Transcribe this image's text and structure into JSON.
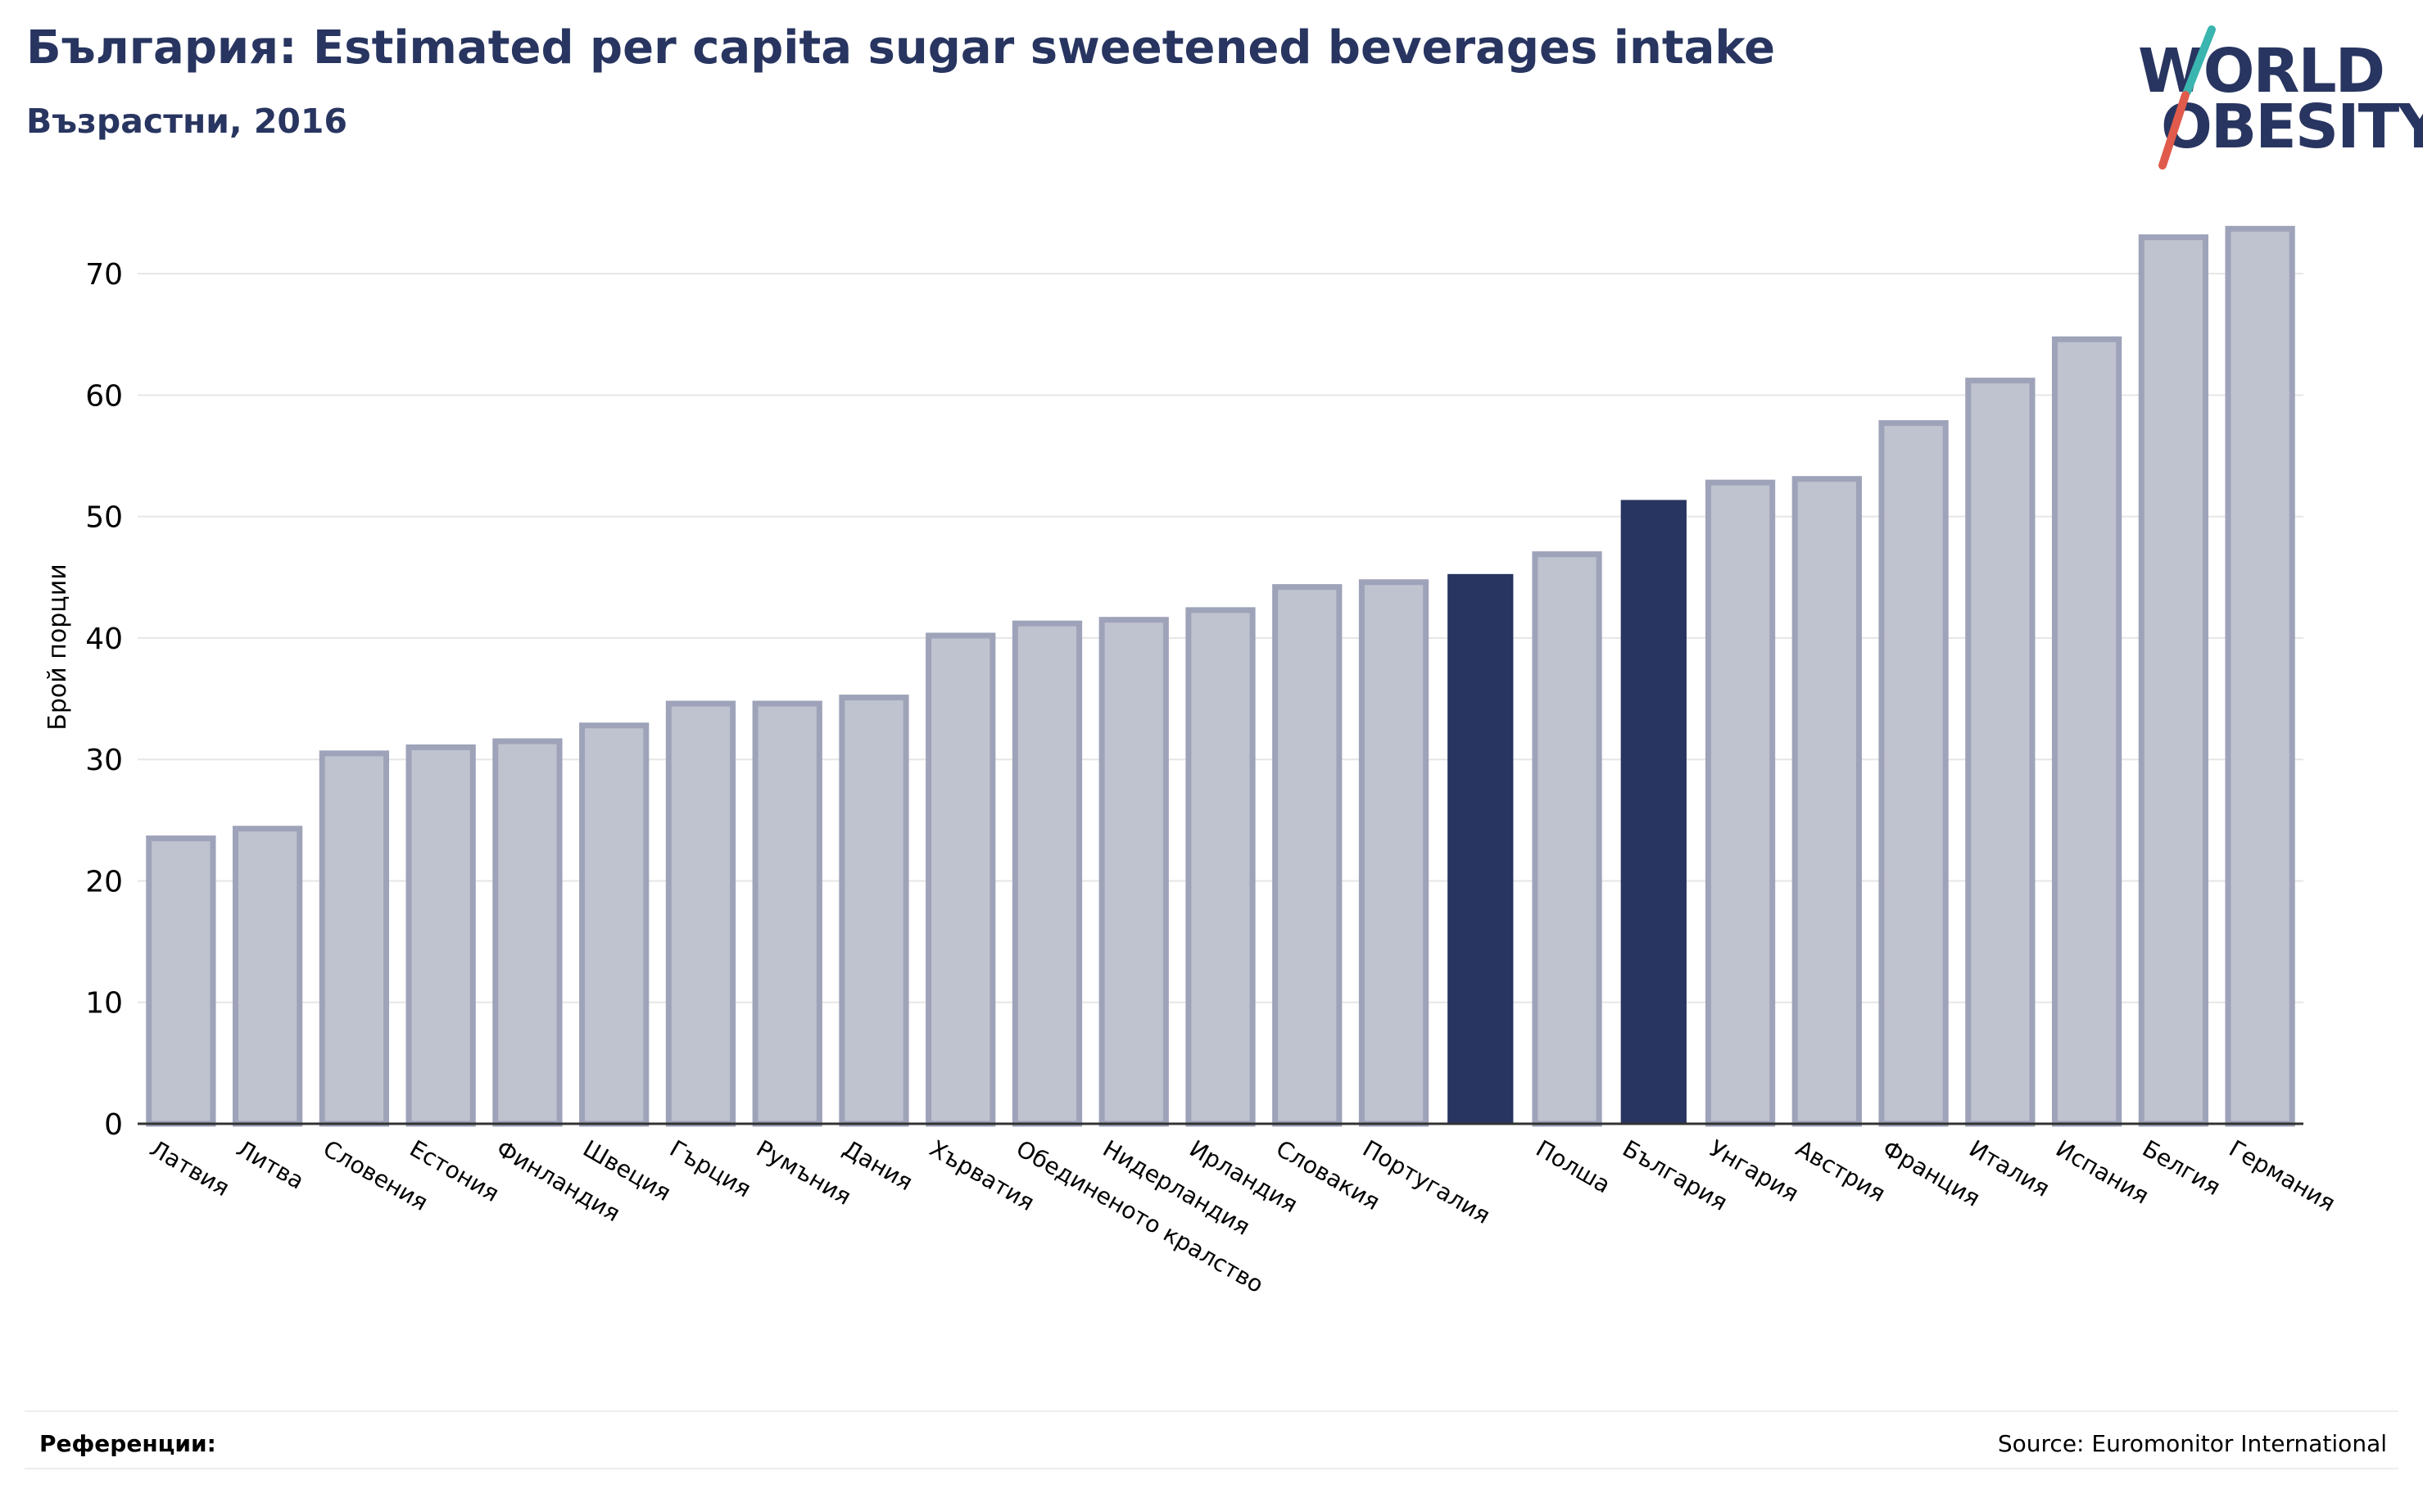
{
  "title": "България: Estimated per capita sugar sweetened beverages intake",
  "subtitle": "Възрастни, 2016",
  "logo": {
    "line1": "WORLD",
    "line2": "OBESITY"
  },
  "footer": {
    "references_label": "Референции:",
    "source": "Source: Euromonitor International"
  },
  "colors": {
    "title": "#283560",
    "bar_fill": "#bfc2cf",
    "bar_stroke": "#9ea3b9",
    "highlight": "#283560",
    "logo_teal": "#3ab5b0",
    "logo_red": "#e05b4b"
  },
  "chart_data": {
    "type": "bar",
    "ylabel": "Брой порции",
    "ylim": [
      0,
      75
    ],
    "yticks": [
      0,
      10,
      20,
      30,
      40,
      50,
      60,
      70
    ],
    "grid": true,
    "categories": [
      "Латвия",
      "Литва",
      "Словения",
      "Естония",
      "Финландия",
      "Швеция",
      "Гърция",
      "Румъния",
      "Дания",
      "Хърватия",
      "Обединеното кралство",
      "Нидерландия",
      "Ирландия",
      "Словакия",
      "Португалия",
      "",
      "Полша",
      "България",
      "Унгария",
      "Австрия",
      "Франция",
      "Италия",
      "Испания",
      "Белгия",
      "Германия"
    ],
    "values": [
      23.5,
      24.3,
      30.5,
      31.0,
      31.5,
      32.8,
      34.6,
      34.6,
      35.1,
      40.2,
      41.2,
      41.5,
      42.3,
      44.2,
      44.6,
      45.2,
      46.9,
      51.3,
      52.8,
      53.1,
      57.7,
      61.2,
      64.6,
      73.0,
      73.7
    ],
    "highlighted": [
      15,
      17
    ]
  }
}
